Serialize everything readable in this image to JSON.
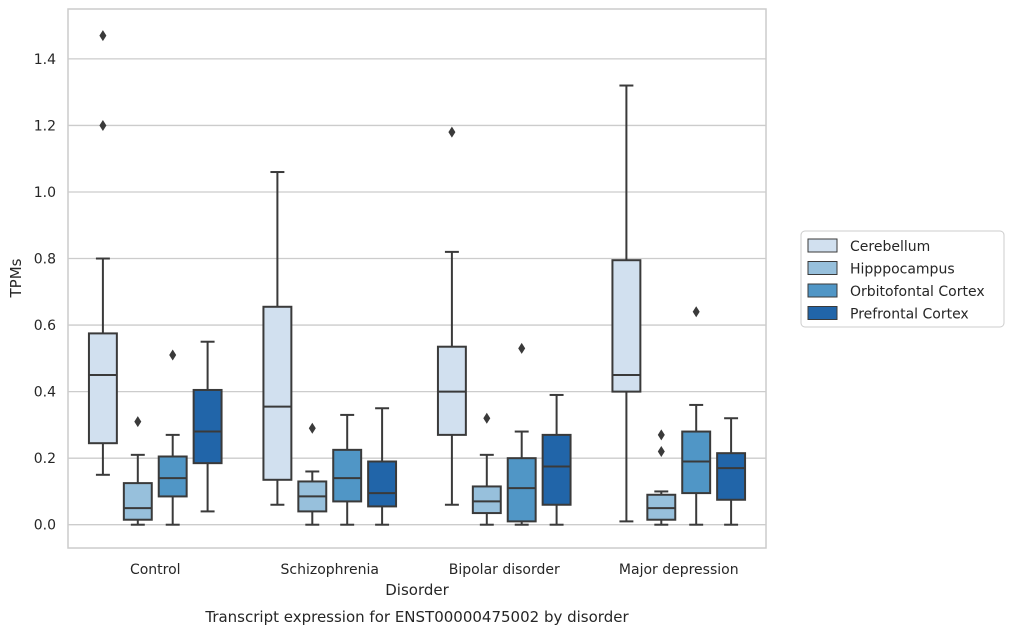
{
  "chart_data": {
    "type": "boxplot",
    "title": "Transcript expression for ENST00000475002 by disorder",
    "xlabel": "Disorder",
    "ylabel": "TPMs",
    "ylim": [
      -0.07,
      1.55
    ],
    "yticks": [
      0.0,
      0.2,
      0.4,
      0.6,
      0.8,
      1.0,
      1.2,
      1.4
    ],
    "ytick_labels": [
      "0.0",
      "0.2",
      "0.4",
      "0.6",
      "0.8",
      "1.0",
      "1.2",
      "1.4"
    ],
    "grid": "horizontal",
    "legend_position": "right",
    "categories": [
      "Control",
      "Schizophrenia",
      "Bipolar disorder",
      "Major depression"
    ],
    "series": [
      {
        "name": "Cerebellum",
        "color": "#d1e0ef",
        "boxes": [
          {
            "whislo": 0.15,
            "q1": 0.245,
            "med": 0.45,
            "q3": 0.575,
            "whishi": 0.8,
            "fliers": [
              1.2,
              1.47
            ]
          },
          {
            "whislo": 0.06,
            "q1": 0.135,
            "med": 0.355,
            "q3": 0.655,
            "whishi": 1.06,
            "fliers": []
          },
          {
            "whislo": 0.06,
            "q1": 0.27,
            "med": 0.4,
            "q3": 0.535,
            "whishi": 0.82,
            "fliers": [
              1.18
            ]
          },
          {
            "whislo": 0.01,
            "q1": 0.4,
            "med": 0.45,
            "q3": 0.795,
            "whishi": 1.32,
            "fliers": []
          }
        ]
      },
      {
        "name": "Hipppocampus",
        "color": "#97c0dc",
        "boxes": [
          {
            "whislo": 0.0,
            "q1": 0.015,
            "med": 0.05,
            "q3": 0.125,
            "whishi": 0.21,
            "fliers": [
              0.31
            ]
          },
          {
            "whislo": 0.0,
            "q1": 0.04,
            "med": 0.085,
            "q3": 0.13,
            "whishi": 0.16,
            "fliers": [
              0.29
            ]
          },
          {
            "whislo": 0.0,
            "q1": 0.035,
            "med": 0.07,
            "q3": 0.115,
            "whishi": 0.21,
            "fliers": [
              0.32
            ]
          },
          {
            "whislo": 0.0,
            "q1": 0.015,
            "med": 0.05,
            "q3": 0.09,
            "whishi": 0.1,
            "fliers": [
              0.22,
              0.27
            ]
          }
        ]
      },
      {
        "name": "Orbitofontal Cortex",
        "color": "#5096c6",
        "boxes": [
          {
            "whislo": 0.0,
            "q1": 0.085,
            "med": 0.14,
            "q3": 0.205,
            "whishi": 0.27,
            "fliers": [
              0.51
            ]
          },
          {
            "whislo": 0.0,
            "q1": 0.07,
            "med": 0.14,
            "q3": 0.225,
            "whishi": 0.33,
            "fliers": []
          },
          {
            "whislo": 0.0,
            "q1": 0.01,
            "med": 0.11,
            "q3": 0.2,
            "whishi": 0.28,
            "fliers": [
              0.53
            ]
          },
          {
            "whislo": 0.0,
            "q1": 0.095,
            "med": 0.19,
            "q3": 0.28,
            "whishi": 0.36,
            "fliers": [
              0.64
            ]
          }
        ]
      },
      {
        "name": "Prefrontal Cortex",
        "color": "#2165a9",
        "boxes": [
          {
            "whislo": 0.04,
            "q1": 0.185,
            "med": 0.28,
            "q3": 0.405,
            "whishi": 0.55,
            "fliers": []
          },
          {
            "whislo": 0.0,
            "q1": 0.055,
            "med": 0.095,
            "q3": 0.19,
            "whishi": 0.35,
            "fliers": []
          },
          {
            "whislo": 0.0,
            "q1": 0.06,
            "med": 0.175,
            "q3": 0.27,
            "whishi": 0.39,
            "fliers": []
          },
          {
            "whislo": 0.0,
            "q1": 0.075,
            "med": 0.17,
            "q3": 0.215,
            "whishi": 0.32,
            "fliers": []
          }
        ]
      }
    ]
  }
}
